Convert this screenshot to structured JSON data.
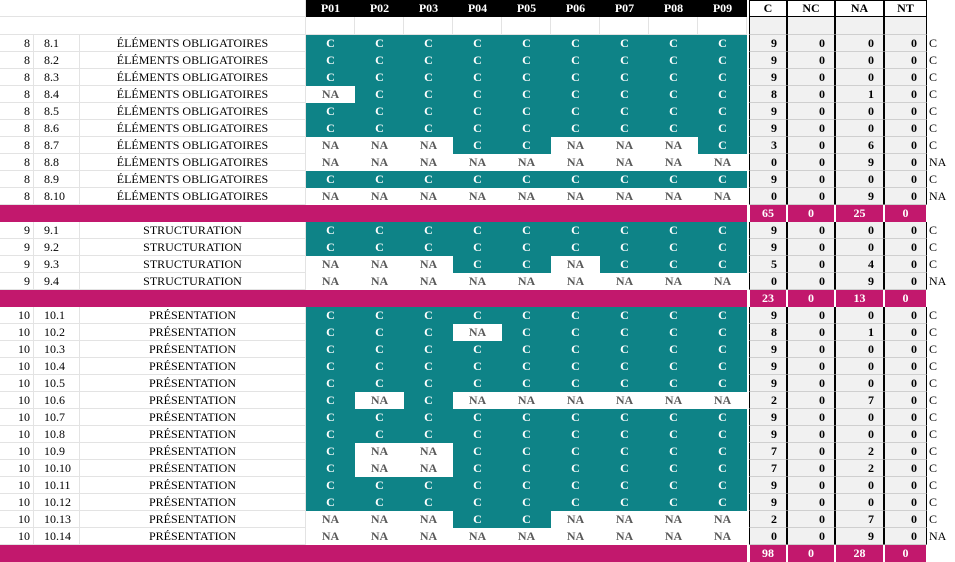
{
  "sheet": {
    "header_p": [
      "P01",
      "P02",
      "P03",
      "P04",
      "P05",
      "P06",
      "P07",
      "P08",
      "P09"
    ],
    "header_s": [
      "C",
      "NC",
      "NA",
      "NT"
    ],
    "sections": [
      {
        "group": "8",
        "rows": [
          {
            "group": "8",
            "id": "8.1",
            "label": "ÉLÉMENTS OBLIGATOIRES",
            "p": [
              "C",
              "C",
              "C",
              "C",
              "C",
              "C",
              "C",
              "C",
              "C"
            ],
            "s": [
              "9",
              "0",
              "0",
              "0"
            ],
            "tail": "C"
          },
          {
            "group": "8",
            "id": "8.2",
            "label": "ÉLÉMENTS OBLIGATOIRES",
            "p": [
              "C",
              "C",
              "C",
              "C",
              "C",
              "C",
              "C",
              "C",
              "C"
            ],
            "s": [
              "9",
              "0",
              "0",
              "0"
            ],
            "tail": "C"
          },
          {
            "group": "8",
            "id": "8.3",
            "label": "ÉLÉMENTS OBLIGATOIRES",
            "p": [
              "C",
              "C",
              "C",
              "C",
              "C",
              "C",
              "C",
              "C",
              "C"
            ],
            "s": [
              "9",
              "0",
              "0",
              "0"
            ],
            "tail": "C"
          },
          {
            "group": "8",
            "id": "8.4",
            "label": "ÉLÉMENTS OBLIGATOIRES",
            "p": [
              "NA",
              "C",
              "C",
              "C",
              "C",
              "C",
              "C",
              "C",
              "C"
            ],
            "s": [
              "8",
              "0",
              "1",
              "0"
            ],
            "tail": "C"
          },
          {
            "group": "8",
            "id": "8.5",
            "label": "ÉLÉMENTS OBLIGATOIRES",
            "p": [
              "C",
              "C",
              "C",
              "C",
              "C",
              "C",
              "C",
              "C",
              "C"
            ],
            "s": [
              "9",
              "0",
              "0",
              "0"
            ],
            "tail": "C"
          },
          {
            "group": "8",
            "id": "8.6",
            "label": "ÉLÉMENTS OBLIGATOIRES",
            "p": [
              "C",
              "C",
              "C",
              "C",
              "C",
              "C",
              "C",
              "C",
              "C"
            ],
            "s": [
              "9",
              "0",
              "0",
              "0"
            ],
            "tail": "C"
          },
          {
            "group": "8",
            "id": "8.7",
            "label": "ÉLÉMENTS OBLIGATOIRES",
            "p": [
              "NA",
              "NA",
              "NA",
              "C",
              "C",
              "NA",
              "NA",
              "NA",
              "C"
            ],
            "s": [
              "3",
              "0",
              "6",
              "0"
            ],
            "tail": "C"
          },
          {
            "group": "8",
            "id": "8.8",
            "label": "ÉLÉMENTS OBLIGATOIRES",
            "p": [
              "NA",
              "NA",
              "NA",
              "NA",
              "NA",
              "NA",
              "NA",
              "NA",
              "NA"
            ],
            "s": [
              "0",
              "0",
              "9",
              "0"
            ],
            "tail": "NA"
          },
          {
            "group": "8",
            "id": "8.9",
            "label": "ÉLÉMENTS OBLIGATOIRES",
            "p": [
              "C",
              "C",
              "C",
              "C",
              "C",
              "C",
              "C",
              "C",
              "C"
            ],
            "s": [
              "9",
              "0",
              "0",
              "0"
            ],
            "tail": "C"
          },
          {
            "group": "8",
            "id": "8.10",
            "label": "ÉLÉMENTS OBLIGATOIRES",
            "p": [
              "NA",
              "NA",
              "NA",
              "NA",
              "NA",
              "NA",
              "NA",
              "NA",
              "NA"
            ],
            "s": [
              "0",
              "0",
              "9",
              "0"
            ],
            "tail": "NA"
          }
        ],
        "totals": [
          "65",
          "0",
          "25",
          "0"
        ]
      },
      {
        "group": "9",
        "rows": [
          {
            "group": "9",
            "id": "9.1",
            "label": "STRUCTURATION",
            "p": [
              "C",
              "C",
              "C",
              "C",
              "C",
              "C",
              "C",
              "C",
              "C"
            ],
            "s": [
              "9",
              "0",
              "0",
              "0"
            ],
            "tail": "C"
          },
          {
            "group": "9",
            "id": "9.2",
            "label": "STRUCTURATION",
            "p": [
              "C",
              "C",
              "C",
              "C",
              "C",
              "C",
              "C",
              "C",
              "C"
            ],
            "s": [
              "9",
              "0",
              "0",
              "0"
            ],
            "tail": "C"
          },
          {
            "group": "9",
            "id": "9.3",
            "label": "STRUCTURATION",
            "p": [
              "NA",
              "NA",
              "NA",
              "C",
              "C",
              "NA",
              "C",
              "C",
              "C"
            ],
            "s": [
              "5",
              "0",
              "4",
              "0"
            ],
            "tail": "C"
          },
          {
            "group": "9",
            "id": "9.4",
            "label": "STRUCTURATION",
            "p": [
              "NA",
              "NA",
              "NA",
              "NA",
              "NA",
              "NA",
              "NA",
              "NA",
              "NA"
            ],
            "s": [
              "0",
              "0",
              "9",
              "0"
            ],
            "tail": "NA"
          }
        ],
        "totals": [
          "23",
          "0",
          "13",
          "0"
        ]
      },
      {
        "group": "10",
        "rows": [
          {
            "group": "10",
            "id": "10.1",
            "label": "PRÉSENTATION",
            "p": [
              "C",
              "C",
              "C",
              "C",
              "C",
              "C",
              "C",
              "C",
              "C"
            ],
            "s": [
              "9",
              "0",
              "0",
              "0"
            ],
            "tail": "C"
          },
          {
            "group": "10",
            "id": "10.2",
            "label": "PRÉSENTATION",
            "p": [
              "C",
              "C",
              "C",
              "NA",
              "C",
              "C",
              "C",
              "C",
              "C"
            ],
            "s": [
              "8",
              "0",
              "1",
              "0"
            ],
            "tail": "C"
          },
          {
            "group": "10",
            "id": "10.3",
            "label": "PRÉSENTATION",
            "p": [
              "C",
              "C",
              "C",
              "C",
              "C",
              "C",
              "C",
              "C",
              "C"
            ],
            "s": [
              "9",
              "0",
              "0",
              "0"
            ],
            "tail": "C"
          },
          {
            "group": "10",
            "id": "10.4",
            "label": "PRÉSENTATION",
            "p": [
              "C",
              "C",
              "C",
              "C",
              "C",
              "C",
              "C",
              "C",
              "C"
            ],
            "s": [
              "9",
              "0",
              "0",
              "0"
            ],
            "tail": "C"
          },
          {
            "group": "10",
            "id": "10.5",
            "label": "PRÉSENTATION",
            "p": [
              "C",
              "C",
              "C",
              "C",
              "C",
              "C",
              "C",
              "C",
              "C"
            ],
            "s": [
              "9",
              "0",
              "0",
              "0"
            ],
            "tail": "C"
          },
          {
            "group": "10",
            "id": "10.6",
            "label": "PRÉSENTATION",
            "p": [
              "C",
              "NA",
              "C",
              "NA",
              "NA",
              "NA",
              "NA",
              "NA",
              "NA"
            ],
            "s": [
              "2",
              "0",
              "7",
              "0"
            ],
            "tail": "C"
          },
          {
            "group": "10",
            "id": "10.7",
            "label": "PRÉSENTATION",
            "p": [
              "C",
              "C",
              "C",
              "C",
              "C",
              "C",
              "C",
              "C",
              "C"
            ],
            "s": [
              "9",
              "0",
              "0",
              "0"
            ],
            "tail": "C"
          },
          {
            "group": "10",
            "id": "10.8",
            "label": "PRÉSENTATION",
            "p": [
              "C",
              "C",
              "C",
              "C",
              "C",
              "C",
              "C",
              "C",
              "C"
            ],
            "s": [
              "9",
              "0",
              "0",
              "0"
            ],
            "tail": "C"
          },
          {
            "group": "10",
            "id": "10.9",
            "label": "PRÉSENTATION",
            "p": [
              "C",
              "NA",
              "NA",
              "C",
              "C",
              "C",
              "C",
              "C",
              "C"
            ],
            "s": [
              "7",
              "0",
              "2",
              "0"
            ],
            "tail": "C"
          },
          {
            "group": "10",
            "id": "10.10",
            "label": "PRÉSENTATION",
            "p": [
              "C",
              "NA",
              "NA",
              "C",
              "C",
              "C",
              "C",
              "C",
              "C"
            ],
            "s": [
              "7",
              "0",
              "2",
              "0"
            ],
            "tail": "C"
          },
          {
            "group": "10",
            "id": "10.11",
            "label": "PRÉSENTATION",
            "p": [
              "C",
              "C",
              "C",
              "C",
              "C",
              "C",
              "C",
              "C",
              "C"
            ],
            "s": [
              "9",
              "0",
              "0",
              "0"
            ],
            "tail": "C"
          },
          {
            "group": "10",
            "id": "10.12",
            "label": "PRÉSENTATION",
            "p": [
              "C",
              "C",
              "C",
              "C",
              "C",
              "C",
              "C",
              "C",
              "C"
            ],
            "s": [
              "9",
              "0",
              "0",
              "0"
            ],
            "tail": "C"
          },
          {
            "group": "10",
            "id": "10.13",
            "label": "PRÉSENTATION",
            "p": [
              "NA",
              "NA",
              "NA",
              "C",
              "C",
              "NA",
              "NA",
              "NA",
              "NA"
            ],
            "s": [
              "2",
              "0",
              "7",
              "0"
            ],
            "tail": "C"
          },
          {
            "group": "10",
            "id": "10.14",
            "label": "PRÉSENTATION",
            "p": [
              "NA",
              "NA",
              "NA",
              "NA",
              "NA",
              "NA",
              "NA",
              "NA",
              "NA"
            ],
            "s": [
              "0",
              "0",
              "9",
              "0"
            ],
            "tail": "NA"
          }
        ],
        "totals": [
          "98",
          "0",
          "28",
          "0"
        ]
      }
    ]
  },
  "colors": {
    "conforme_fill": "#0e8387",
    "na_fill": "#ffffff",
    "header_fill": "#000000",
    "totals_band": "#c2186d"
  }
}
